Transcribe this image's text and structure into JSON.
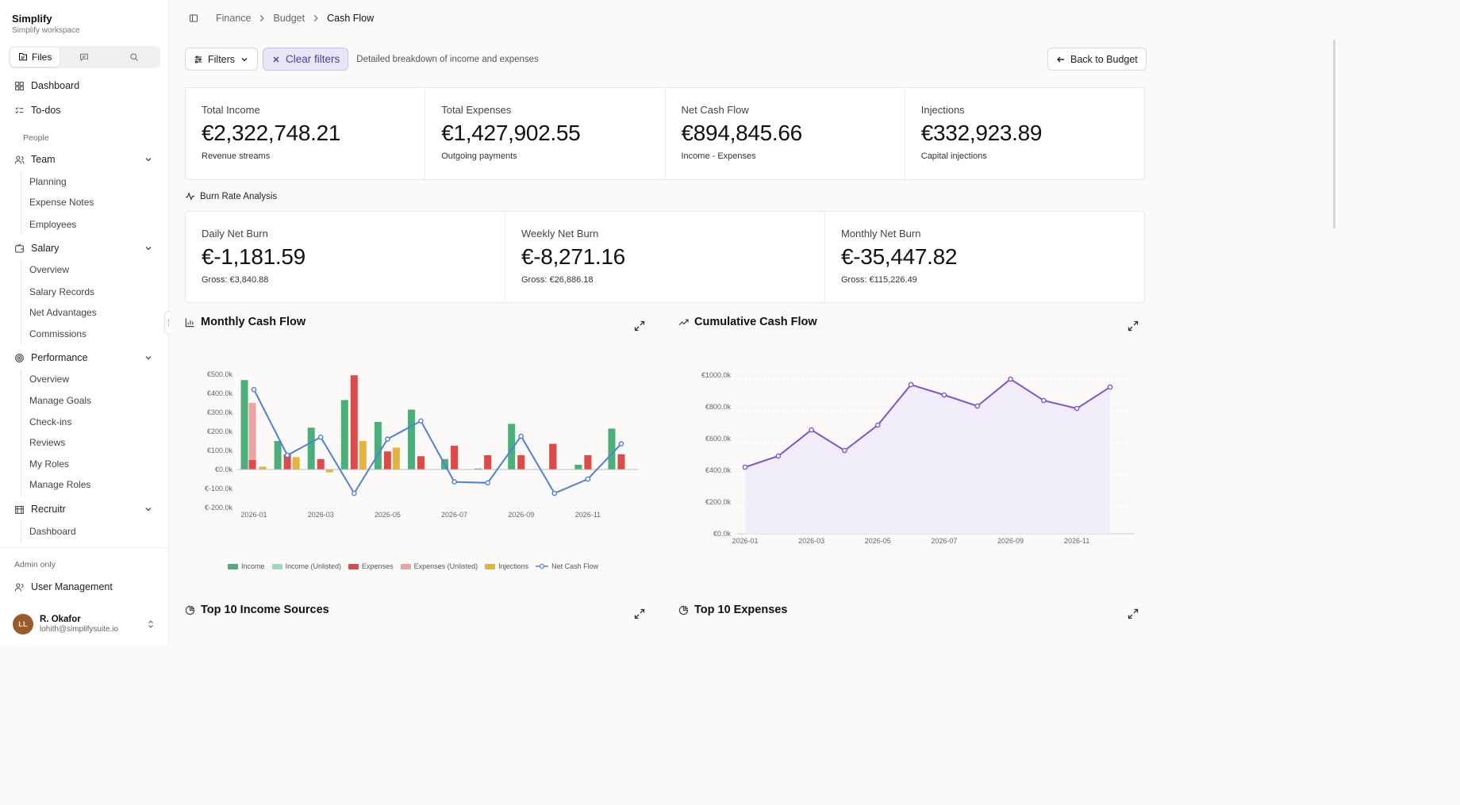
{
  "brand": {
    "title": "Simplify",
    "subtitle": "Simplify workspace"
  },
  "tabs": {
    "files": "Files"
  },
  "nav": {
    "dashboard": "Dashboard",
    "todos": "To-dos",
    "people_label": "People",
    "team": {
      "label": "Team",
      "items": [
        "Planning",
        "Expense Notes",
        "Employees"
      ]
    },
    "salary": {
      "label": "Salary",
      "items": [
        "Overview",
        "Salary Records",
        "Net Advantages",
        "Commissions"
      ]
    },
    "performance": {
      "label": "Performance",
      "items": [
        "Overview",
        "Manage Goals",
        "Check-ins",
        "Reviews",
        "My Roles",
        "Manage Roles"
      ]
    },
    "recruitr": {
      "label": "Recruitr",
      "items": [
        "Dashboard"
      ]
    },
    "admin_label": "Admin only",
    "user_management": "User Management"
  },
  "user": {
    "initials": "LL",
    "name": "R. Okafor",
    "email": "lohith@simplifysuite.io"
  },
  "breadcrumb": [
    "Finance",
    "Budget",
    "Cash Flow"
  ],
  "toolbar": {
    "filters": "Filters",
    "clear": "Clear filters",
    "description": "Detailed breakdown of income and expenses",
    "back": "Back to Budget"
  },
  "summary": [
    {
      "label": "Total Income",
      "value": "€2,322,748.21",
      "sub": "Revenue streams"
    },
    {
      "label": "Total Expenses",
      "value": "€1,427,902.55",
      "sub": "Outgoing payments"
    },
    {
      "label": "Net Cash Flow",
      "value": "€894,845.66",
      "sub": "Income - Expenses"
    },
    {
      "label": "Injections",
      "value": "€332,923.89",
      "sub": "Capital injections"
    }
  ],
  "burn": {
    "title": "Burn Rate Analysis",
    "cards": [
      {
        "label": "Daily Net Burn",
        "value": "€-1,181.59",
        "sub": "Gross: €3,840.88"
      },
      {
        "label": "Weekly Net Burn",
        "value": "€-8,271.16",
        "sub": "Gross: €26,886.18"
      },
      {
        "label": "Monthly Net Burn",
        "value": "€-35,447.82",
        "sub": "Gross: €115,226.49"
      }
    ]
  },
  "panels": {
    "monthly": "Monthly Cash Flow",
    "cumulative": "Cumulative Cash Flow",
    "top_income": "Top 10 Income Sources",
    "top_expenses": "Top 10 Expenses"
  },
  "colors": {
    "income": "#4caf7a",
    "income_unlisted": "#9ed9bd",
    "expenses": "#dc4a4a",
    "expenses_unlisted": "#eca3a3",
    "injections": "#e3b43a",
    "net": "#4f7fe0",
    "cumulative": "#7d56d6",
    "cumulative_fill": "#f1edfb"
  },
  "chart_data": [
    {
      "type": "bar",
      "title": "Monthly Cash Flow",
      "categories": [
        "2026-01",
        "2026-02",
        "2026-03",
        "2026-04",
        "2026-05",
        "2026-06",
        "2026-07",
        "2026-08",
        "2026-09",
        "2026-10",
        "2026-11",
        "2026-12"
      ],
      "tick_labels": [
        "2026-01",
        "2026-03",
        "2026-05",
        "2026-07",
        "2026-09",
        "2026-11"
      ],
      "y_ticks": [
        "€500.0k",
        "€400.0k",
        "€300.0k",
        "€200.0k",
        "€100.0k",
        "€0.0k",
        "€-100.0k",
        "€-200.0k"
      ],
      "ylim": [
        -200,
        500
      ],
      "series": [
        {
          "name": "Income",
          "values": [
            470,
            150,
            220,
            365,
            250,
            315,
            55,
            5,
            240,
            0,
            25,
            215
          ]
        },
        {
          "name": "Income (Unlisted)",
          "values": [
            0,
            0,
            0,
            0,
            0,
            0,
            0,
            0,
            0,
            0,
            0,
            0
          ]
        },
        {
          "name": "Expenses",
          "values": [
            50,
            80,
            55,
            495,
            95,
            70,
            125,
            75,
            75,
            135,
            75,
            80
          ]
        },
        {
          "name": "Expenses (Unlisted)",
          "values": [
            350,
            0,
            0,
            0,
            0,
            0,
            0,
            0,
            0,
            130,
            0,
            0
          ]
        },
        {
          "name": "Injections",
          "values": [
            15,
            65,
            -15,
            150,
            115,
            0,
            0,
            0,
            0,
            0,
            0,
            0
          ]
        },
        {
          "name": "Net Cash Flow",
          "values": [
            420,
            75,
            170,
            -125,
            160,
            255,
            -65,
            -70,
            175,
            -125,
            -50,
            135
          ]
        }
      ]
    },
    {
      "type": "area",
      "title": "Cumulative Cash Flow",
      "categories": [
        "2026-01",
        "2026-02",
        "2026-03",
        "2026-04",
        "2026-05",
        "2026-06",
        "2026-07",
        "2026-08",
        "2026-09",
        "2026-10",
        "2026-11",
        "2026-12"
      ],
      "tick_labels": [
        "2026-01",
        "2026-03",
        "2026-05",
        "2026-07",
        "2026-09",
        "2026-11"
      ],
      "y_ticks": [
        "€1000.0k",
        "€800.0k",
        "€600.0k",
        "€400.0k",
        "€200.0k",
        "€0.0k"
      ],
      "ylim": [
        0,
        1000
      ],
      "series": [
        {
          "name": "Cumulative",
          "values": [
            420,
            490,
            655,
            525,
            685,
            940,
            875,
            805,
            975,
            840,
            790,
            925
          ]
        }
      ]
    }
  ]
}
